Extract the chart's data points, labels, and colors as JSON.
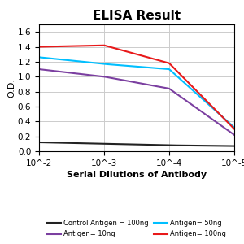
{
  "title": "ELISA Result",
  "ylabel": "O.D.",
  "xlabel": "Serial Dilutions of Antibody",
  "x_values": [
    0.01,
    0.001,
    0.0001,
    1e-05
  ],
  "series": [
    {
      "label": "Control Antigen = 100ng",
      "color": "#222222",
      "y": [
        0.12,
        0.1,
        0.08,
        0.07
      ]
    },
    {
      "label": "Antigen= 10ng",
      "color": "#7B3FA0",
      "y": [
        1.1,
        1.0,
        0.84,
        0.22
      ]
    },
    {
      "label": "Antigen= 50ng",
      "color": "#00BFFF",
      "y": [
        1.26,
        1.17,
        1.1,
        0.32
      ]
    },
    {
      "label": "Antigen= 100ng",
      "color": "#E8191A",
      "y": [
        1.4,
        1.42,
        1.18,
        0.3
      ]
    }
  ],
  "ylim": [
    0,
    1.7
  ],
  "yticks": [
    0,
    0.2,
    0.4,
    0.6,
    0.8,
    1.0,
    1.2,
    1.4,
    1.6
  ],
  "xlim_log": [
    -2,
    -5
  ],
  "xtick_labels": [
    "10^-2",
    "10^-3",
    "10^-4",
    "10^-5"
  ],
  "background_color": "#ffffff",
  "grid_color": "#cccccc"
}
